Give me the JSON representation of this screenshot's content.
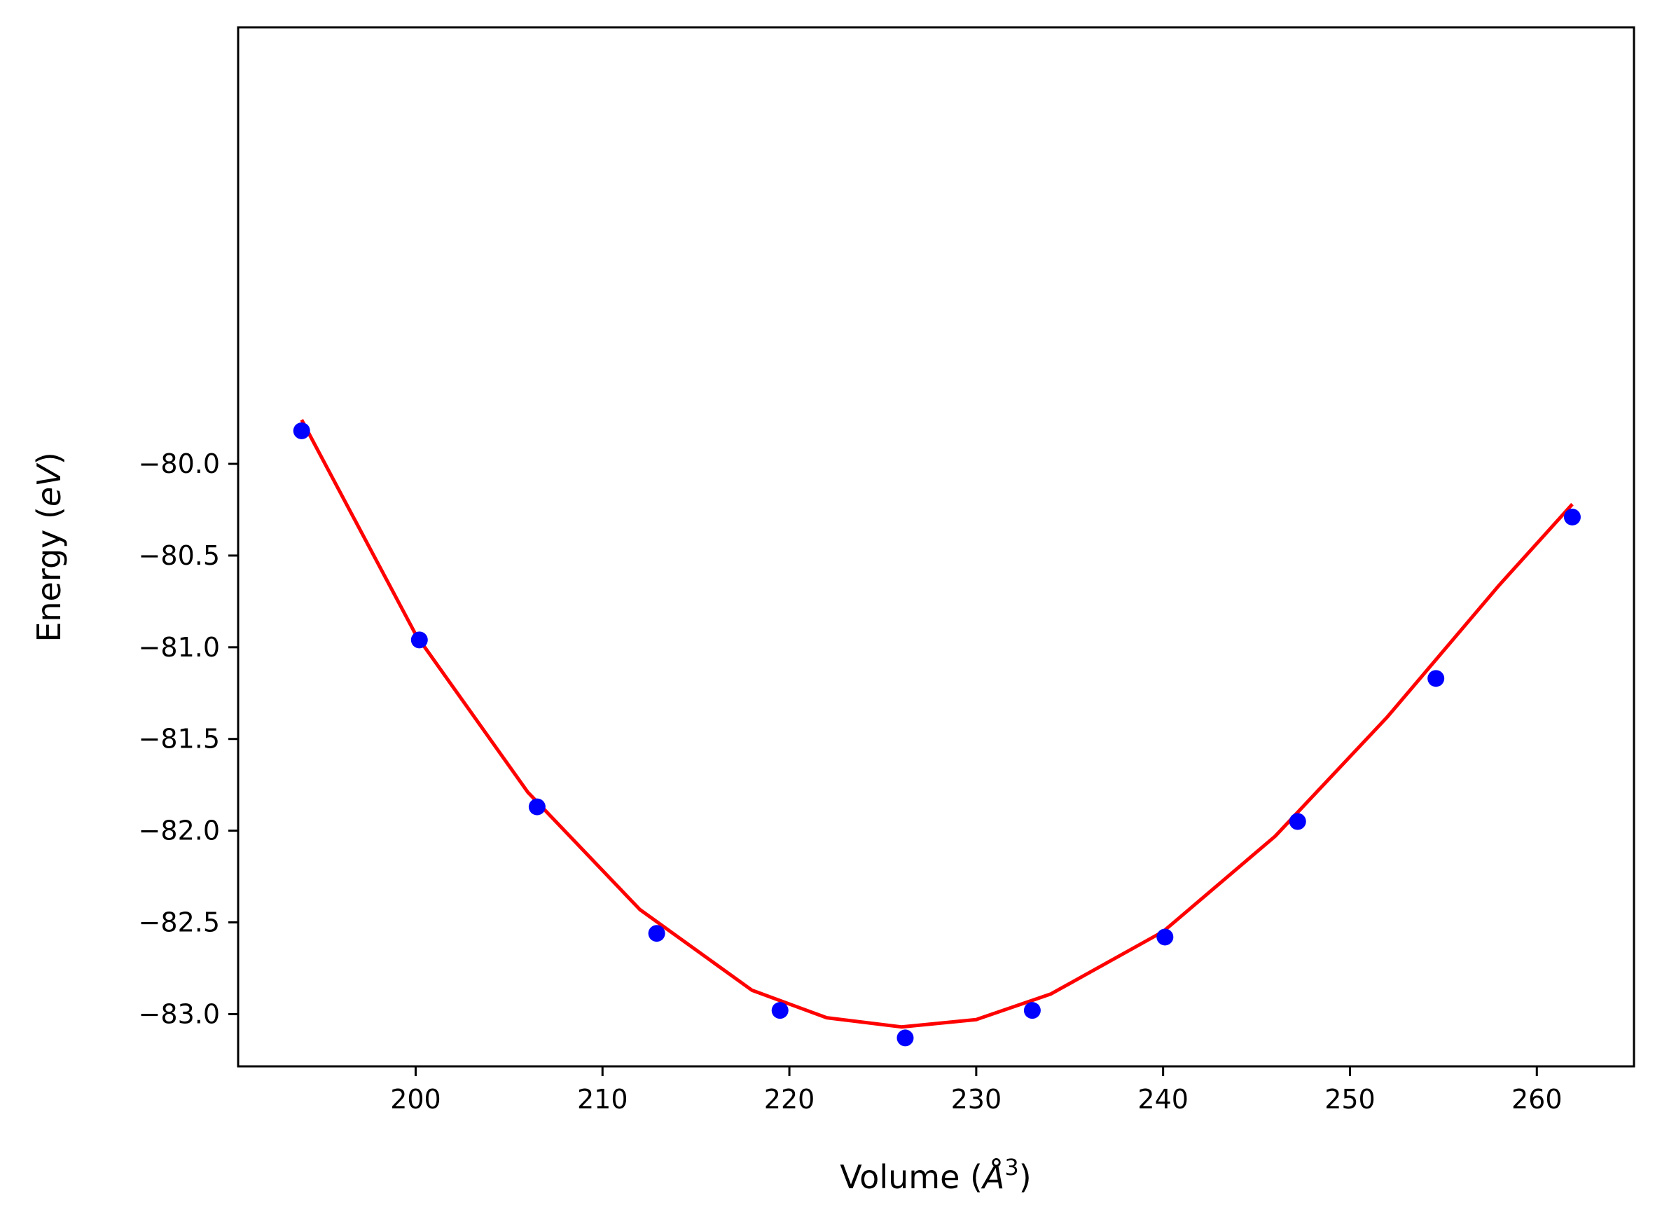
{
  "chart_data": {
    "type": "scatter",
    "title": "",
    "xlabel": {
      "prefix": "Volume (",
      "symbol": "Å",
      "sup": "3",
      "suffix": ")"
    },
    "ylabel": {
      "prefix": "Energy (",
      "symbol": "eV",
      "suffix": ")"
    },
    "xlim": [
      190.5,
      265.2
    ],
    "ylim": [
      -83.285,
      -77.62
    ],
    "xticks": [
      200,
      210,
      220,
      230,
      240,
      250,
      260
    ],
    "xtick_labels": [
      "200",
      "210",
      "220",
      "230",
      "240",
      "250",
      "260"
    ],
    "yticks": [
      -80.0,
      -80.5,
      -81.0,
      -81.5,
      -82.0,
      -82.5,
      -83.0
    ],
    "ytick_labels": [
      "−80.0",
      "−80.5",
      "−81.0",
      "−81.5",
      "−82.0",
      "−82.5",
      "−83.0"
    ],
    "grid": false,
    "series": [
      {
        "kind": "scatter",
        "color": "#0000ff",
        "x": [
          193.9,
          200.2,
          206.5,
          212.9,
          219.5,
          226.2,
          233.0,
          240.1,
          247.2,
          254.6,
          261.9
        ],
        "y": [
          -79.82,
          -80.96,
          -81.87,
          -82.56,
          -82.98,
          -83.13,
          -82.98,
          -82.58,
          -81.95,
          -81.17,
          -80.29
        ]
      },
      {
        "kind": "line",
        "color": "#ff0000",
        "x": [
          193.9,
          200.0,
          206.0,
          212.0,
          218.0,
          222.0,
          226.0,
          230.0,
          234.0,
          240.0,
          246.0,
          252.0,
          258.0,
          261.9
        ],
        "y": [
          -79.76,
          -80.93,
          -81.79,
          -82.43,
          -82.87,
          -83.02,
          -83.07,
          -83.03,
          -82.89,
          -82.55,
          -82.03,
          -81.38,
          -80.66,
          -80.22
        ]
      }
    ]
  }
}
